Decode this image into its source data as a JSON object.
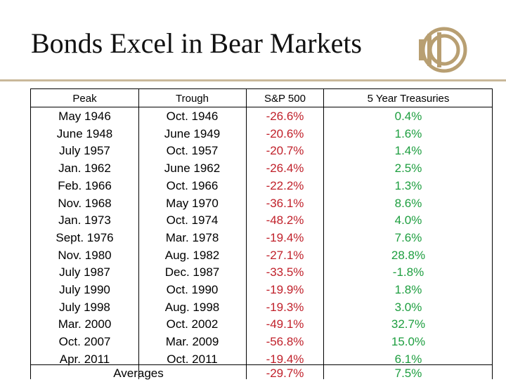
{
  "title": "Bonds Excel in Bear Markets",
  "logo_icon": "stylized-d-logo",
  "colors": {
    "accent": "#c9b89a",
    "negative": "#c0202a",
    "positive": "#1d9e3f"
  },
  "table": {
    "headers": {
      "peak": "Peak",
      "trough": "Trough",
      "sp500": "S&P 500",
      "treasuries": "5 Year Treasuries"
    },
    "rows": [
      {
        "peak": "May 1946",
        "trough": "Oct. 1946",
        "sp500": "-26.6%",
        "treasuries": "0.4%"
      },
      {
        "peak": "June 1948",
        "trough": "June 1949",
        "sp500": "-20.6%",
        "treasuries": "1.6%"
      },
      {
        "peak": "July 1957",
        "trough": "Oct. 1957",
        "sp500": "-20.7%",
        "treasuries": "1.4%"
      },
      {
        "peak": "Jan. 1962",
        "trough": "June 1962",
        "sp500": "-26.4%",
        "treasuries": "2.5%"
      },
      {
        "peak": "Feb. 1966",
        "trough": "Oct. 1966",
        "sp500": "-22.2%",
        "treasuries": "1.3%"
      },
      {
        "peak": "Nov. 1968",
        "trough": "May 1970",
        "sp500": "-36.1%",
        "treasuries": "8.6%"
      },
      {
        "peak": "Jan. 1973",
        "trough": "Oct. 1974",
        "sp500": "-48.2%",
        "treasuries": "4.0%"
      },
      {
        "peak": "Sept. 1976",
        "trough": "Mar. 1978",
        "sp500": "-19.4%",
        "treasuries": "7.6%"
      },
      {
        "peak": "Nov. 1980",
        "trough": "Aug. 1982",
        "sp500": "-27.1%",
        "treasuries": "28.8%"
      },
      {
        "peak": "July 1987",
        "trough": "Dec. 1987",
        "sp500": "-33.5%",
        "treasuries": "-1.8%"
      },
      {
        "peak": "July 1990",
        "trough": "Oct. 1990",
        "sp500": "-19.9%",
        "treasuries": "1.8%"
      },
      {
        "peak": "July 1998",
        "trough": "Aug. 1998",
        "sp500": "-19.3%",
        "treasuries": "3.0%"
      },
      {
        "peak": "Mar. 2000",
        "trough": "Oct. 2002",
        "sp500": "-49.1%",
        "treasuries": "32.7%"
      },
      {
        "peak": "Oct. 2007",
        "trough": "Mar. 2009",
        "sp500": "-56.8%",
        "treasuries": "15.0%"
      },
      {
        "peak": "Apr. 2011",
        "trough": "Oct. 2011",
        "sp500": "-19.4%",
        "treasuries": "6.1%"
      }
    ],
    "averages": {
      "label": "Averages",
      "sp500": "-29.7%",
      "treasuries": "7.5%"
    }
  }
}
